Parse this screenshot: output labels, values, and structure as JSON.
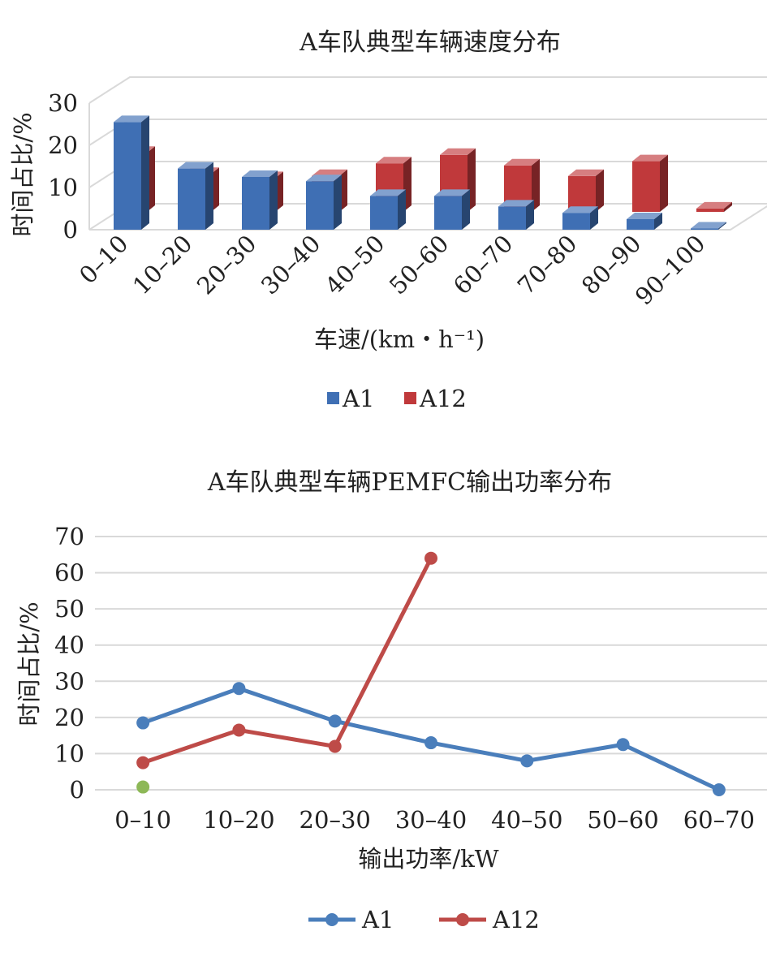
{
  "chart_data": [
    {
      "type": "bar",
      "title": "A车队典型车辆速度分布",
      "xlabel": "车速/(km・h⁻¹)",
      "ylabel": "时间占比/%",
      "ylim": [
        0,
        30
      ],
      "yticks": [
        "0",
        "10",
        "20",
        "30"
      ],
      "categories": [
        "0–10",
        "10–20",
        "20–30",
        "30–40",
        "40–50",
        "50–60",
        "60–70",
        "70–80",
        "80–90",
        "90–100"
      ],
      "series": [
        {
          "name": "A1",
          "values": [
            25.5,
            14.5,
            12.5,
            11.5,
            8,
            8,
            5.5,
            4,
            2.5,
            0.3
          ]
        },
        {
          "name": "A12",
          "values": [
            14,
            9,
            8,
            8.5,
            11.5,
            13.5,
            11,
            8.5,
            12,
            0.8
          ]
        }
      ],
      "colors": {
        "A1": "#3f6fb4",
        "A12": "#c0393b"
      },
      "legend": "bottom",
      "grid": true,
      "style": "3d-clustered-column"
    },
    {
      "type": "line",
      "title": "A车队典型车辆PEMFC输出功率分布",
      "xlabel": "输出功率/kW",
      "ylabel": "时间占比/%",
      "ylim": [
        0,
        70
      ],
      "yticks": [
        "0",
        "10",
        "20",
        "30",
        "40",
        "50",
        "60",
        "70"
      ],
      "categories": [
        "0–10",
        "10–20",
        "20–30",
        "30–40",
        "40–50",
        "50–60",
        "60–70"
      ],
      "series": [
        {
          "name": "A1",
          "values": [
            18.5,
            28,
            19,
            13,
            8,
            12.5,
            0
          ]
        },
        {
          "name": "A12",
          "values": [
            7.5,
            16.5,
            12,
            64,
            null,
            null,
            null
          ]
        }
      ],
      "extra_point": {
        "category": "0–10",
        "value": 1
      },
      "colors": {
        "A1": "#4a7ebb",
        "A12": "#be4b48",
        "extra_point": "#8db857"
      },
      "legend": "bottom",
      "grid": true
    }
  ]
}
